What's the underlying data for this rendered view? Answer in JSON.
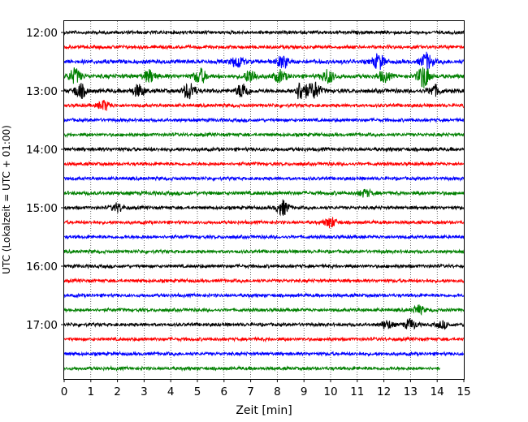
{
  "chart_data": {
    "type": "line",
    "title": "",
    "xlabel": "Zeit  [min]",
    "ylabel": "UTC (Lokalzeit = UTC + 01:00)",
    "xlim": [
      0,
      15
    ],
    "x_ticks": [
      "0",
      "1",
      "2",
      "3",
      "4",
      "5",
      "6",
      "7",
      "8",
      "9",
      "10",
      "11",
      "12",
      "13",
      "14",
      "15"
    ],
    "y_ticks": [
      {
        "label": "12:00",
        "row": 0
      },
      {
        "label": "13:00",
        "row": 4
      },
      {
        "label": "14:00",
        "row": 8
      },
      {
        "label": "15:00",
        "row": 12
      },
      {
        "label": "16:00",
        "row": 16
      },
      {
        "label": "17:00",
        "row": 20
      }
    ],
    "grid": "vertical-dotted",
    "series_colors": [
      "#000000",
      "#ff0000",
      "#0000ff",
      "#008000"
    ],
    "traces": [
      {
        "start": "12:00",
        "color": "#000000",
        "amp": 2.0,
        "events": []
      },
      {
        "start": "12:15",
        "color": "#ff0000",
        "amp": 2.0,
        "events": []
      },
      {
        "start": "12:30",
        "color": "#0000ff",
        "amp": 2.5,
        "events": [
          [
            6.5,
            7
          ],
          [
            8.2,
            7
          ],
          [
            11.8,
            9
          ],
          [
            13.6,
            10
          ]
        ]
      },
      {
        "start": "12:45",
        "color": "#008000",
        "amp": 2.5,
        "events": [
          [
            0.4,
            9
          ],
          [
            3.2,
            7
          ],
          [
            5.1,
            9
          ],
          [
            7.0,
            8
          ],
          [
            8.1,
            7
          ],
          [
            9.9,
            8
          ],
          [
            12.0,
            6
          ],
          [
            13.5,
            14
          ]
        ]
      },
      {
        "start": "13:00",
        "color": "#000000",
        "amp": 2.5,
        "events": [
          [
            0.6,
            8
          ],
          [
            2.8,
            7
          ],
          [
            4.7,
            10
          ],
          [
            6.7,
            9
          ],
          [
            8.9,
            12
          ],
          [
            9.4,
            10
          ],
          [
            13.9,
            6
          ]
        ]
      },
      {
        "start": "13:15",
        "color": "#ff0000",
        "amp": 2.0,
        "events": [
          [
            1.5,
            6
          ]
        ]
      },
      {
        "start": "13:30",
        "color": "#0000ff",
        "amp": 2.0,
        "events": []
      },
      {
        "start": "13:45",
        "color": "#008000",
        "amp": 2.0,
        "events": []
      },
      {
        "start": "14:00",
        "color": "#000000",
        "amp": 2.2,
        "events": []
      },
      {
        "start": "14:15",
        "color": "#ff0000",
        "amp": 2.0,
        "events": []
      },
      {
        "start": "14:30",
        "color": "#0000ff",
        "amp": 2.0,
        "events": []
      },
      {
        "start": "14:45",
        "color": "#008000",
        "amp": 2.3,
        "events": [
          [
            11.3,
            4
          ]
        ]
      },
      {
        "start": "15:00",
        "color": "#000000",
        "amp": 2.0,
        "events": [
          [
            2.0,
            5
          ],
          [
            8.2,
            9
          ]
        ]
      },
      {
        "start": "15:15",
        "color": "#ff0000",
        "amp": 2.0,
        "events": [
          [
            10.0,
            6
          ]
        ]
      },
      {
        "start": "15:30",
        "color": "#0000ff",
        "amp": 2.0,
        "events": []
      },
      {
        "start": "15:45",
        "color": "#008000",
        "amp": 2.0,
        "events": []
      },
      {
        "start": "16:00",
        "color": "#000000",
        "amp": 2.0,
        "events": []
      },
      {
        "start": "16:15",
        "color": "#ff0000",
        "amp": 2.0,
        "events": []
      },
      {
        "start": "16:30",
        "color": "#0000ff",
        "amp": 2.0,
        "events": []
      },
      {
        "start": "16:45",
        "color": "#008000",
        "amp": 2.0,
        "events": [
          [
            13.3,
            5
          ]
        ]
      },
      {
        "start": "17:00",
        "color": "#000000",
        "amp": 2.0,
        "events": [
          [
            12.1,
            5
          ],
          [
            13.0,
            6
          ],
          [
            14.2,
            4
          ]
        ]
      },
      {
        "start": "17:15",
        "color": "#ff0000",
        "amp": 2.0,
        "events": []
      },
      {
        "start": "17:30",
        "color": "#0000ff",
        "amp": 2.0,
        "events": []
      },
      {
        "start": "17:45",
        "color": "#008000",
        "amp": 2.0,
        "end_x": 14.1,
        "events": []
      }
    ]
  }
}
